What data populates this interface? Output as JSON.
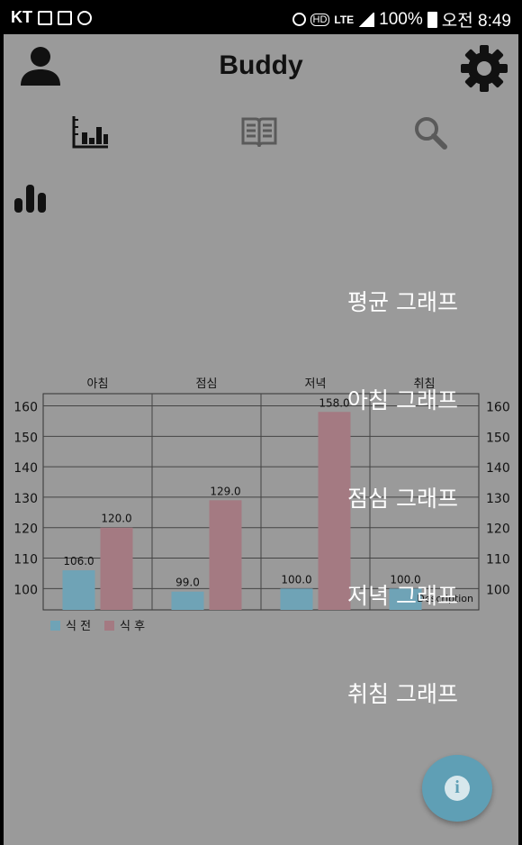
{
  "status_bar": {
    "carrier": "KT",
    "network": "LTE",
    "battery": "100%",
    "time": "오전 8:49"
  },
  "app_bar": {
    "title": "Buddy",
    "profile_icon": "person-icon",
    "settings_icon": "gear-icon"
  },
  "tabs": [
    {
      "icon": "bar-chart-icon",
      "active": true
    },
    {
      "icon": "book-icon",
      "active": false
    },
    {
      "icon": "search-icon",
      "active": false
    }
  ],
  "section_icon": "bar-chart-icon",
  "menu": {
    "average": "평균 그래프",
    "morning": "아침 그래프",
    "lunch": "점심 그래프",
    "dinner": "저녁 그래프",
    "bedtime": "취침 그래프"
  },
  "chart_data": {
    "type": "bar",
    "categories": [
      "아침",
      "점심",
      "저녁",
      "취침"
    ],
    "series": [
      {
        "name": "식 전",
        "values": [
          106.0,
          99.0,
          100.0,
          100.0
        ],
        "color": "#6fa3b6"
      },
      {
        "name": "식 후",
        "values": [
          120.0,
          129.0,
          158.0,
          null
        ],
        "color": "#a47a82"
      }
    ],
    "value_labels": {
      "before": [
        "106.0",
        "99.0",
        "100.0",
        "100.0"
      ],
      "after": [
        "120.0",
        "129.0",
        "158.0",
        ""
      ]
    },
    "y_ticks": [
      "100",
      "110",
      "120",
      "130",
      "140",
      "150",
      "160"
    ],
    "ylim": [
      93,
      164
    ],
    "description": "Description",
    "legend_position": "bottom-left",
    "grid": true
  },
  "colors": {
    "background": "#9a9a9a",
    "before_meal": "#6fa3b6",
    "after_meal": "#a47a82",
    "fab": "#5f9fb5"
  },
  "fab": {
    "icon": "info-icon"
  }
}
